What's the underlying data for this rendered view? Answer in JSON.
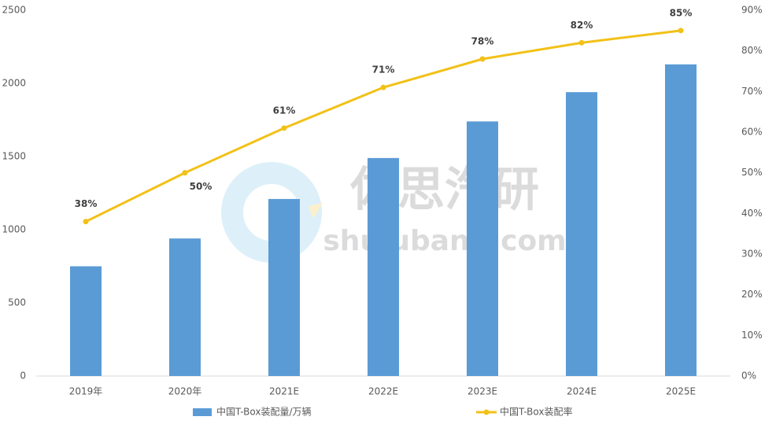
{
  "chart_data": {
    "type": "bar-line",
    "categories": [
      "2019年",
      "2020年",
      "2021E",
      "2022E",
      "2023E",
      "2024E",
      "2025E"
    ],
    "series": [
      {
        "name": "中国T-Box装配量/万辆",
        "type": "bar",
        "color": "#5b9bd5",
        "values": [
          750,
          940,
          1210,
          1490,
          1740,
          1940,
          2130
        ]
      },
      {
        "name": "中国T-Box装配率",
        "type": "line",
        "axis": "y2",
        "color": "#f2c117",
        "values": [
          38,
          50,
          61,
          71,
          78,
          82,
          85
        ],
        "value_labels": [
          "38%",
          "50%",
          "61%",
          "71%",
          "78%",
          "82%",
          "85%"
        ]
      }
    ],
    "ylim": [
      0,
      2500
    ],
    "yticks": [
      0,
      500,
      1000,
      1500,
      2000,
      2500
    ],
    "y2lim": [
      0,
      90
    ],
    "y2ticks": [
      {
        "value": 0,
        "label": "0%"
      },
      {
        "value": 10,
        "label": "10%"
      },
      {
        "value": 20,
        "label": "20%"
      },
      {
        "value": 30,
        "label": "30%"
      },
      {
        "value": 40,
        "label": "40%"
      },
      {
        "value": 50,
        "label": "50%"
      },
      {
        "value": 60,
        "label": "60%"
      },
      {
        "value": 70,
        "label": "70%"
      },
      {
        "value": 80,
        "label": "80%"
      },
      {
        "value": 90,
        "label": "90%"
      }
    ],
    "grid": false,
    "legend": "bottom",
    "watermark": {
      "name": "佐思汽研",
      "site": "shujubang.com"
    }
  }
}
